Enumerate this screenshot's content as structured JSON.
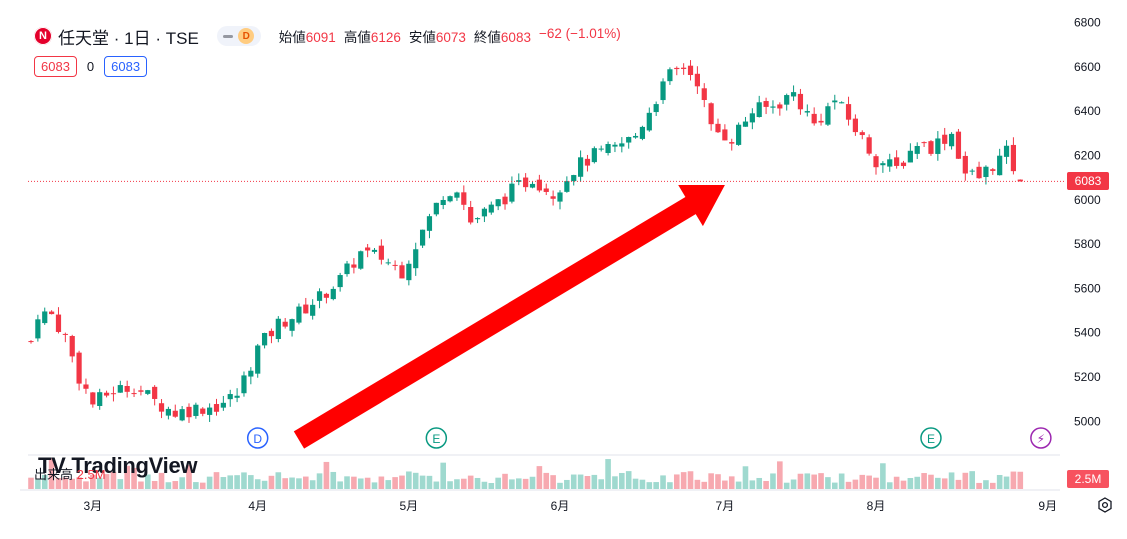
{
  "header": {
    "logo_letter": "N",
    "symbol": "任天堂",
    "interval": "1日",
    "exchange": "TSE",
    "badge_letter": "D",
    "ohlc": [
      {
        "label": "始値",
        "value": "6091"
      },
      {
        "label": "高値",
        "value": "6126"
      },
      {
        "label": "安値",
        "value": "6073"
      },
      {
        "label": "終値",
        "value": "6083"
      },
      {
        "label": "",
        "value": "−62 (−1.01%)"
      }
    ]
  },
  "subbar": {
    "sell": "6083",
    "spread": "0",
    "buy": "6083"
  },
  "price_tag": "6083",
  "volume": {
    "label": "出来高",
    "value": "2.5M",
    "tag": "2.5M"
  },
  "watermark": "TradingView",
  "events": [
    {
      "letter": "D",
      "color": "#2962ff",
      "day": 33
    },
    {
      "letter": "E",
      "color": "#089981",
      "day": 59
    },
    {
      "letter": "E",
      "color": "#089981",
      "day": 131
    },
    {
      "letter": "⚡",
      "color": "#9c27b0",
      "day": 147
    }
  ],
  "colors": {
    "up": "#089981",
    "down": "#f23645",
    "arrow": "#ff0000",
    "last_line": "#f23645"
  },
  "chart_data": {
    "type": "candlestick",
    "symbol": "任天堂",
    "y_ticks": [
      5000,
      5200,
      5400,
      5600,
      5800,
      6000,
      6200,
      6400,
      6600,
      6800
    ],
    "ylim": [
      4880,
      6820
    ],
    "x_ticks": [
      {
        "label": "3月",
        "day": 9
      },
      {
        "label": "4月",
        "day": 33
      },
      {
        "label": "5月",
        "day": 55
      },
      {
        "label": "6月",
        "day": 77
      },
      {
        "label": "7月",
        "day": 101
      },
      {
        "label": "8月",
        "day": 123
      },
      {
        "label": "9月",
        "day": 148
      }
    ],
    "last_price": 6083,
    "annotation": "red arrow pointing up-right from early April to late June",
    "ohlc_anchors": [
      {
        "day": 0,
        "close": 5360
      },
      {
        "day": 1,
        "close": 5490
      },
      {
        "day": 3,
        "close": 5480
      },
      {
        "day": 5,
        "close": 5380
      },
      {
        "day": 7,
        "close": 5200
      },
      {
        "day": 9,
        "close": 5080
      },
      {
        "day": 12,
        "close": 5140
      },
      {
        "day": 15,
        "close": 5160
      },
      {
        "day": 18,
        "close": 5090
      },
      {
        "day": 21,
        "close": 5040
      },
      {
        "day": 24,
        "close": 5060
      },
      {
        "day": 27,
        "close": 5070
      },
      {
        "day": 30,
        "close": 5120
      },
      {
        "day": 33,
        "close": 5330
      },
      {
        "day": 36,
        "close": 5440
      },
      {
        "day": 39,
        "close": 5490
      },
      {
        "day": 42,
        "close": 5560
      },
      {
        "day": 45,
        "close": 5640
      },
      {
        "day": 48,
        "close": 5760
      },
      {
        "day": 51,
        "close": 5740
      },
      {
        "day": 54,
        "close": 5680
      },
      {
        "day": 57,
        "close": 5860
      },
      {
        "day": 60,
        "close": 6030
      },
      {
        "day": 62,
        "close": 6060
      },
      {
        "day": 64,
        "close": 5900
      },
      {
        "day": 67,
        "close": 5960
      },
      {
        "day": 70,
        "close": 6040
      },
      {
        "day": 73,
        "close": 6100
      },
      {
        "day": 76,
        "close": 6030
      },
      {
        "day": 79,
        "close": 6140
      },
      {
        "day": 82,
        "close": 6200
      },
      {
        "day": 85,
        "close": 6230
      },
      {
        "day": 88,
        "close": 6290
      },
      {
        "day": 91,
        "close": 6460
      },
      {
        "day": 93,
        "close": 6560
      },
      {
        "day": 95,
        "close": 6600
      },
      {
        "day": 97,
        "close": 6540
      },
      {
        "day": 99,
        "close": 6320
      },
      {
        "day": 102,
        "close": 6280
      },
      {
        "day": 105,
        "close": 6400
      },
      {
        "day": 108,
        "close": 6420
      },
      {
        "day": 111,
        "close": 6480
      },
      {
        "day": 114,
        "close": 6340
      },
      {
        "day": 117,
        "close": 6450
      },
      {
        "day": 120,
        "close": 6320
      },
      {
        "day": 123,
        "close": 6180
      },
      {
        "day": 126,
        "close": 6140
      },
      {
        "day": 129,
        "close": 6260
      },
      {
        "day": 131,
        "close": 6240
      },
      {
        "day": 134,
        "close": 6300
      },
      {
        "day": 136,
        "close": 6120
      },
      {
        "day": 138,
        "close": 6100
      },
      {
        "day": 140,
        "close": 6160
      },
      {
        "day": 142,
        "close": 6210
      },
      {
        "day": 144,
        "close": 6083
      }
    ],
    "volume_range": [
      0,
      3000000
    ]
  }
}
